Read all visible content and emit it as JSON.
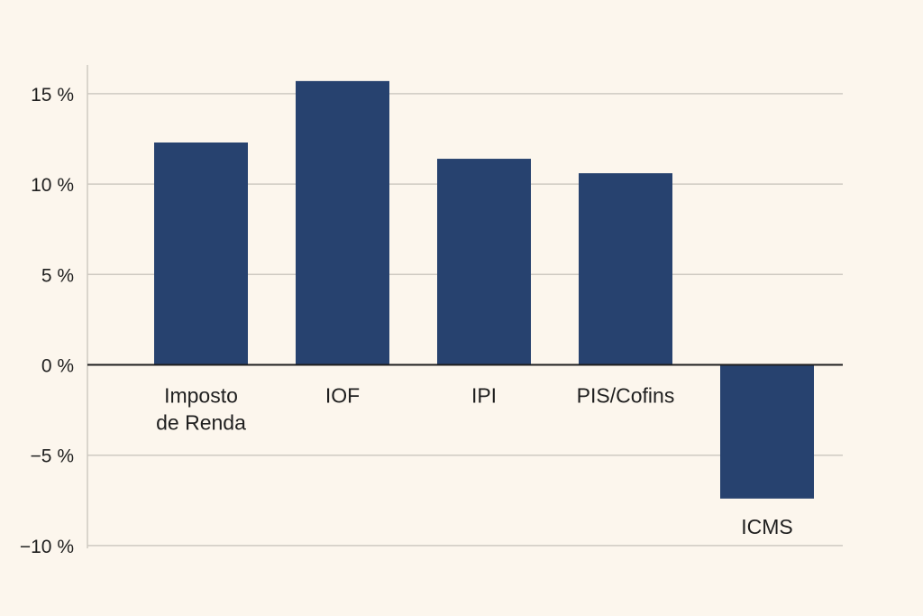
{
  "chart_data": {
    "type": "bar",
    "title": "",
    "xlabel": "",
    "ylabel": "",
    "categories": [
      "Imposto de Renda",
      "IOF",
      "IPI",
      "PIS/Cofins",
      "ICMS"
    ],
    "values": [
      12.3,
      15.7,
      11.4,
      10.6,
      -7.4
    ],
    "ylim": [
      -10,
      15
    ],
    "yticks": [
      15,
      10,
      5,
      0,
      -5,
      -10
    ],
    "ytick_labels": [
      "15 %",
      "10 %",
      "5 %",
      "0 %",
      "−5 %",
      "−10 %"
    ],
    "grid": true,
    "legend": "none",
    "bar_color": "#27426f",
    "grid_color": "#cfcac2",
    "axis_color": "#1f1f1f"
  }
}
